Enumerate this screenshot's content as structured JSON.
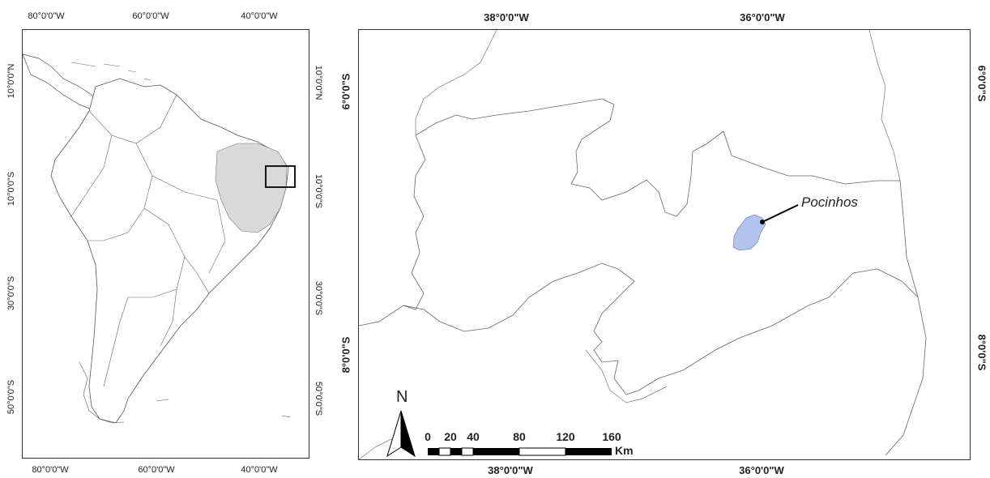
{
  "overview_map": {
    "top_lon_labels": [
      "80°0'0\"W",
      "60°0'0\"W",
      "40°0'0\"W"
    ],
    "bottom_lon_labels": [
      "80°0'0\"W",
      "60°0'0\"W",
      "40°0'0\"W"
    ],
    "left_lat_labels": [
      "10°0'0\"N",
      "10°0'0\"S",
      "30°0'0\"S",
      "50°0'0\"S"
    ],
    "right_lat_labels": [
      "10°0'0\"N",
      "10°0'0\"S",
      "30°0'0\"S",
      "50°0'0\"S"
    ],
    "highlight_color": "#d9d9d9"
  },
  "detail_map": {
    "top_lon_labels": [
      "38°0'0\"W",
      "36°0'0\"W"
    ],
    "bottom_lon_labels": [
      "38°0'0\"W",
      "36°0'0\"W"
    ],
    "left_lat_labels": [
      "6°0'0\"S",
      "8°0'0\"S"
    ],
    "right_lat_labels": [
      "6°0'0\"S",
      "8°0'0\"S"
    ],
    "municipality_label": "Pocinhos",
    "municipality_color": "#b3c3ef",
    "north_label": "N",
    "scale_bar": {
      "ticks": [
        "0",
        "20",
        "40",
        "80",
        "120",
        "160"
      ],
      "unit": "Km"
    }
  }
}
